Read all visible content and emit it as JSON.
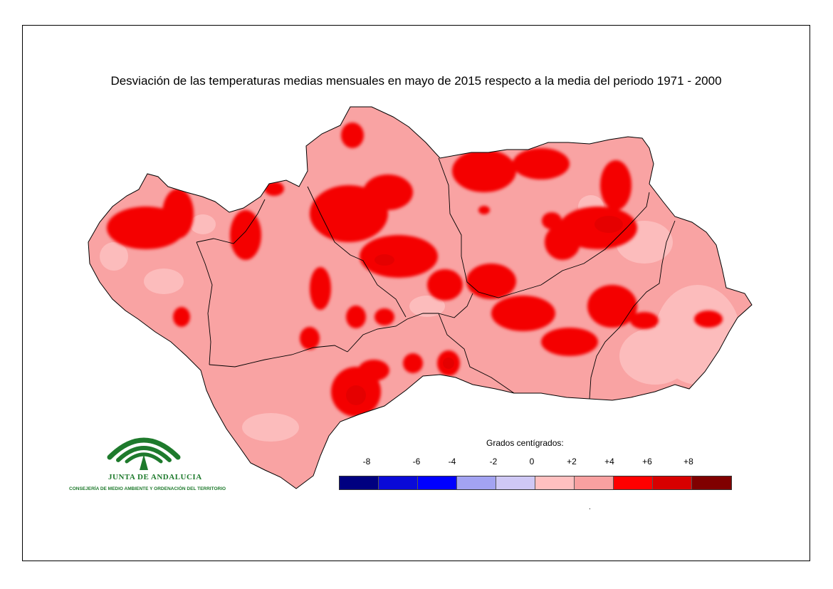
{
  "title": "Desviación de las temperaturas medias mensuales en mayo de 2015 respecto a la media del periodo 1971 - 2000",
  "legend": {
    "title": "Grados centígrados:",
    "ticks": [
      "-8",
      "-6",
      "-4",
      "-2",
      "0",
      "+2",
      "+4",
      "+6",
      "+8"
    ],
    "colors": [
      "#000080",
      "#0a0ad8",
      "#0000ff",
      "#a3a3f2",
      "#cfc8f5",
      "#ffc0c0",
      "#f9a0a0",
      "#ff0000",
      "#d80000",
      "#800000"
    ]
  },
  "palette": {
    "base": "#f9a3a3",
    "light": "#fcbcbc",
    "hot": "#f40000",
    "border": "#000000"
  },
  "logo": {
    "name": "JUNTA DE ANDALUCIA",
    "subtitle": "CONSEJERÍA DE MEDIO AMBIENTE Y ORDENACIÓN DEL TERRITORIO",
    "color": "#1e7a2c"
  },
  "footnote": "."
}
